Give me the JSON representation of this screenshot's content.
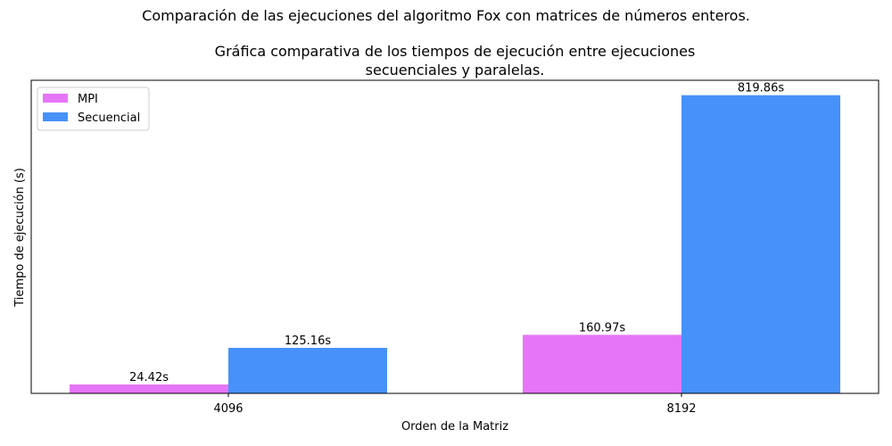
{
  "chart_data": {
    "type": "bar",
    "suptitle": "Comparación de las ejecuciones del algoritmo Fox con matrices de números enteros.",
    "title_lines": [
      "Gráfica comparativa de los tiempos de ejecución entre ejecuciones",
      "secuenciales y paralelas."
    ],
    "xlabel": "Orden de la Matriz",
    "ylabel": "Tiempo de ejecución (s)",
    "categories": [
      "4096",
      "8192"
    ],
    "series": [
      {
        "name": "MPI",
        "values": [
          24.42,
          160.97
        ],
        "labels": [
          "24.42s",
          "160.97s"
        ],
        "color": "#e675f7"
      },
      {
        "name": "Secuencial",
        "values": [
          125.16,
          819.86
        ],
        "labels": [
          "125.16s",
          "819.86s"
        ],
        "color": "#4791fa"
      }
    ],
    "ylim": [
      0,
      860.85
    ],
    "yticks_visible": false,
    "grid": false,
    "legend": "top-left"
  }
}
